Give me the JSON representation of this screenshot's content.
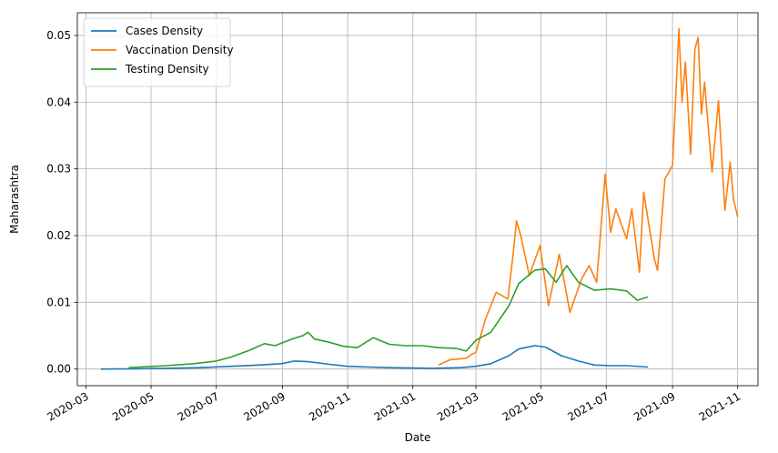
{
  "chart_data": {
    "type": "line",
    "title": "",
    "xlabel": "Date",
    "ylabel": "Maharashtra",
    "x_type": "date",
    "xlim": [
      "2020-02-22",
      "2021-11-20"
    ],
    "ylim": [
      -0.0025,
      0.0534
    ],
    "grid": true,
    "legend_position": "top-left",
    "x_ticks": [
      "2020-03",
      "2020-05",
      "2020-07",
      "2020-09",
      "2020-11",
      "2021-01",
      "2021-03",
      "2021-05",
      "2021-07",
      "2021-09",
      "2021-11"
    ],
    "y_ticks": [
      "0.00",
      "0.01",
      "0.02",
      "0.03",
      "0.04",
      "0.05"
    ],
    "series": [
      {
        "name": "Cases Density",
        "color": "#1f77b4",
        "points": [
          [
            "2020-03-15",
            0.0
          ],
          [
            "2020-04-15",
            2e-05
          ],
          [
            "2020-05-15",
            0.0001
          ],
          [
            "2020-06-15",
            0.0002
          ],
          [
            "2020-07-15",
            0.0004
          ],
          [
            "2020-08-10",
            0.0006
          ],
          [
            "2020-08-31",
            0.0008
          ],
          [
            "2020-09-12",
            0.0012
          ],
          [
            "2020-09-25",
            0.0011
          ],
          [
            "2020-10-15",
            0.0007
          ],
          [
            "2020-11-01",
            0.0004
          ],
          [
            "2020-11-20",
            0.0003
          ],
          [
            "2020-12-10",
            0.0002
          ],
          [
            "2021-01-01",
            0.00015
          ],
          [
            "2021-01-20",
            0.0001
          ],
          [
            "2021-02-15",
            0.0002
          ],
          [
            "2021-03-01",
            0.0004
          ],
          [
            "2021-03-15",
            0.0008
          ],
          [
            "2021-04-01",
            0.002
          ],
          [
            "2021-04-10",
            0.003
          ],
          [
            "2021-04-25",
            0.0035
          ],
          [
            "2021-05-05",
            0.0033
          ],
          [
            "2021-05-20",
            0.002
          ],
          [
            "2021-06-05",
            0.0012
          ],
          [
            "2021-06-20",
            0.0006
          ],
          [
            "2021-07-05",
            0.0005
          ],
          [
            "2021-07-20",
            0.0005
          ],
          [
            "2021-08-09",
            0.0003
          ]
        ]
      },
      {
        "name": "Vaccination Density",
        "color": "#ff7f0e",
        "points": [
          [
            "2021-01-25",
            0.0006
          ],
          [
            "2021-02-05",
            0.0014
          ],
          [
            "2021-02-20",
            0.0016
          ],
          [
            "2021-02-25",
            0.0022
          ],
          [
            "2021-03-01",
            0.0025
          ],
          [
            "2021-03-10",
            0.0075
          ],
          [
            "2021-03-20",
            0.0115
          ],
          [
            "2021-03-31",
            0.0105
          ],
          [
            "2021-04-05",
            0.0175
          ],
          [
            "2021-04-08",
            0.0222
          ],
          [
            "2021-04-12",
            0.02
          ],
          [
            "2021-04-20",
            0.014
          ],
          [
            "2021-04-30",
            0.0185
          ],
          [
            "2021-05-08",
            0.0095
          ],
          [
            "2021-05-18",
            0.0172
          ],
          [
            "2021-05-28",
            0.0085
          ],
          [
            "2021-06-08",
            0.0135
          ],
          [
            "2021-06-15",
            0.0155
          ],
          [
            "2021-06-22",
            0.013
          ],
          [
            "2021-06-30",
            0.0292
          ],
          [
            "2021-07-05",
            0.0205
          ],
          [
            "2021-07-10",
            0.024
          ],
          [
            "2021-07-20",
            0.0195
          ],
          [
            "2021-07-25",
            0.024
          ],
          [
            "2021-08-01",
            0.0145
          ],
          [
            "2021-08-05",
            0.0265
          ],
          [
            "2021-08-15",
            0.0165
          ],
          [
            "2021-08-18",
            0.0148
          ],
          [
            "2021-08-25",
            0.0285
          ],
          [
            "2021-09-01",
            0.0305
          ],
          [
            "2021-09-07",
            0.051
          ],
          [
            "2021-09-10",
            0.04
          ],
          [
            "2021-09-13",
            0.046
          ],
          [
            "2021-09-18",
            0.0322
          ],
          [
            "2021-09-22",
            0.048
          ],
          [
            "2021-09-25",
            0.0497
          ],
          [
            "2021-09-28",
            0.0382
          ],
          [
            "2021-10-01",
            0.043
          ],
          [
            "2021-10-08",
            0.0295
          ],
          [
            "2021-10-14",
            0.0402
          ],
          [
            "2021-10-20",
            0.0238
          ],
          [
            "2021-10-25",
            0.031
          ],
          [
            "2021-10-28",
            0.0255
          ],
          [
            "2021-11-01",
            0.0228
          ]
        ]
      },
      {
        "name": "Testing Density",
        "color": "#2ca02c",
        "points": [
          [
            "2020-04-10",
            0.0002
          ],
          [
            "2020-05-15",
            0.0005
          ],
          [
            "2020-06-10",
            0.0008
          ],
          [
            "2020-07-01",
            0.0012
          ],
          [
            "2020-07-15",
            0.0018
          ],
          [
            "2020-08-01",
            0.0028
          ],
          [
            "2020-08-15",
            0.0038
          ],
          [
            "2020-08-25",
            0.0035
          ],
          [
            "2020-09-10",
            0.0045
          ],
          [
            "2020-09-20",
            0.005
          ],
          [
            "2020-09-25",
            0.0055
          ],
          [
            "2020-10-01",
            0.0045
          ],
          [
            "2020-10-15",
            0.004
          ],
          [
            "2020-10-28",
            0.0034
          ],
          [
            "2020-11-10",
            0.0032
          ],
          [
            "2020-11-25",
            0.0047
          ],
          [
            "2020-12-10",
            0.0037
          ],
          [
            "2020-12-25",
            0.0035
          ],
          [
            "2021-01-10",
            0.0035
          ],
          [
            "2021-01-25",
            0.0032
          ],
          [
            "2021-02-10",
            0.0031
          ],
          [
            "2021-02-20",
            0.0027
          ],
          [
            "2021-03-01",
            0.0043
          ],
          [
            "2021-03-15",
            0.0055
          ],
          [
            "2021-04-01",
            0.0095
          ],
          [
            "2021-04-10",
            0.0128
          ],
          [
            "2021-04-25",
            0.0148
          ],
          [
            "2021-05-05",
            0.015
          ],
          [
            "2021-05-15",
            0.013
          ],
          [
            "2021-05-25",
            0.0155
          ],
          [
            "2021-06-05",
            0.013
          ],
          [
            "2021-06-20",
            0.0118
          ],
          [
            "2021-07-05",
            0.012
          ],
          [
            "2021-07-20",
            0.0117
          ],
          [
            "2021-07-30",
            0.0103
          ],
          [
            "2021-08-09",
            0.0108
          ]
        ]
      }
    ]
  }
}
